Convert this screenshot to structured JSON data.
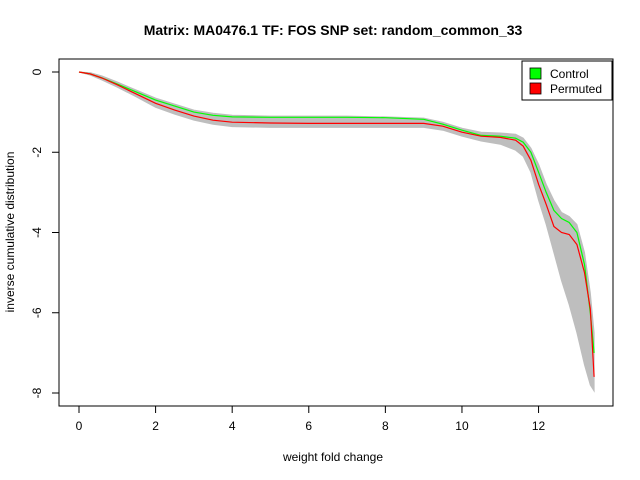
{
  "chart_data": {
    "type": "line",
    "title": "Matrix: MA0476.1 TF: FOS SNP set: random_common_33",
    "xlabel": "weight fold change",
    "ylabel": "inverse cumulative distribution",
    "xlim": [
      0,
      13.5
    ],
    "ylim": [
      -8,
      0
    ],
    "x_ticks": [
      0,
      2,
      4,
      6,
      8,
      10,
      12
    ],
    "y_ticks": [
      0,
      -2,
      -4,
      -6,
      -8
    ],
    "grid": false,
    "legend_position": "top-right",
    "legend": [
      {
        "label": "Control",
        "color": "#00ff00"
      },
      {
        "label": "Permuted",
        "color": "#ff0000"
      }
    ],
    "series": [
      {
        "name": "Control",
        "color": "#00ff00",
        "x": [
          0,
          0.3,
          0.6,
          1.0,
          1.5,
          2.0,
          2.5,
          3.0,
          3.5,
          4.0,
          5.0,
          6.0,
          7.0,
          8.0,
          9.0,
          9.5,
          10.0,
          10.5,
          11.0,
          11.4,
          11.6,
          11.8,
          12.0,
          12.2,
          12.4,
          12.6,
          12.8,
          13.0,
          13.2,
          13.35,
          13.45
        ],
        "y": [
          0,
          -0.05,
          -0.15,
          -0.3,
          -0.5,
          -0.7,
          -0.85,
          -1.0,
          -1.08,
          -1.12,
          -1.13,
          -1.13,
          -1.13,
          -1.14,
          -1.18,
          -1.3,
          -1.45,
          -1.58,
          -1.6,
          -1.65,
          -1.75,
          -2.0,
          -2.5,
          -3.0,
          -3.45,
          -3.65,
          -3.75,
          -4.0,
          -4.8,
          -6.0,
          -7.0
        ]
      },
      {
        "name": "Permuted",
        "color": "#ff0000",
        "x": [
          0,
          0.3,
          0.6,
          1.0,
          1.5,
          2.0,
          2.5,
          3.0,
          3.5,
          4.0,
          5.0,
          6.0,
          7.0,
          8.0,
          9.0,
          9.5,
          10.0,
          10.5,
          11.0,
          11.4,
          11.6,
          11.8,
          12.0,
          12.2,
          12.4,
          12.6,
          12.8,
          13.0,
          13.2,
          13.35,
          13.45
        ],
        "y": [
          0,
          -0.05,
          -0.15,
          -0.32,
          -0.55,
          -0.78,
          -0.95,
          -1.1,
          -1.2,
          -1.25,
          -1.27,
          -1.28,
          -1.28,
          -1.28,
          -1.28,
          -1.35,
          -1.5,
          -1.6,
          -1.63,
          -1.7,
          -1.85,
          -2.2,
          -2.8,
          -3.3,
          -3.85,
          -4.0,
          -4.05,
          -4.3,
          -5.0,
          -5.9,
          -7.6
        ]
      }
    ],
    "background_band": {
      "color": "#bebebe",
      "x": [
        0,
        0.3,
        0.6,
        1.0,
        1.5,
        2.0,
        2.5,
        3.0,
        3.5,
        4.0,
        5.0,
        6.0,
        7.0,
        8.0,
        9.0,
        9.5,
        10.0,
        10.5,
        11.0,
        11.4,
        11.6,
        11.8,
        12.0,
        12.2,
        12.4,
        12.6,
        12.8,
        13.0,
        13.2,
        13.35,
        13.45
      ],
      "upper": [
        0,
        -0.02,
        -0.1,
        -0.25,
        -0.45,
        -0.65,
        -0.8,
        -0.95,
        -1.03,
        -1.08,
        -1.1,
        -1.1,
        -1.1,
        -1.12,
        -1.15,
        -1.25,
        -1.4,
        -1.5,
        -1.52,
        -1.55,
        -1.65,
        -1.9,
        -2.3,
        -2.8,
        -3.2,
        -3.5,
        -3.6,
        -3.8,
        -4.5,
        -5.5,
        -6.5
      ],
      "lower": [
        0,
        -0.08,
        -0.2,
        -0.38,
        -0.62,
        -0.88,
        -1.05,
        -1.2,
        -1.3,
        -1.36,
        -1.38,
        -1.38,
        -1.38,
        -1.38,
        -1.38,
        -1.45,
        -1.6,
        -1.72,
        -1.8,
        -1.95,
        -2.1,
        -2.5,
        -3.2,
        -3.8,
        -4.5,
        -5.2,
        -5.8,
        -6.5,
        -7.3,
        -7.8,
        -7.95
      ]
    }
  }
}
